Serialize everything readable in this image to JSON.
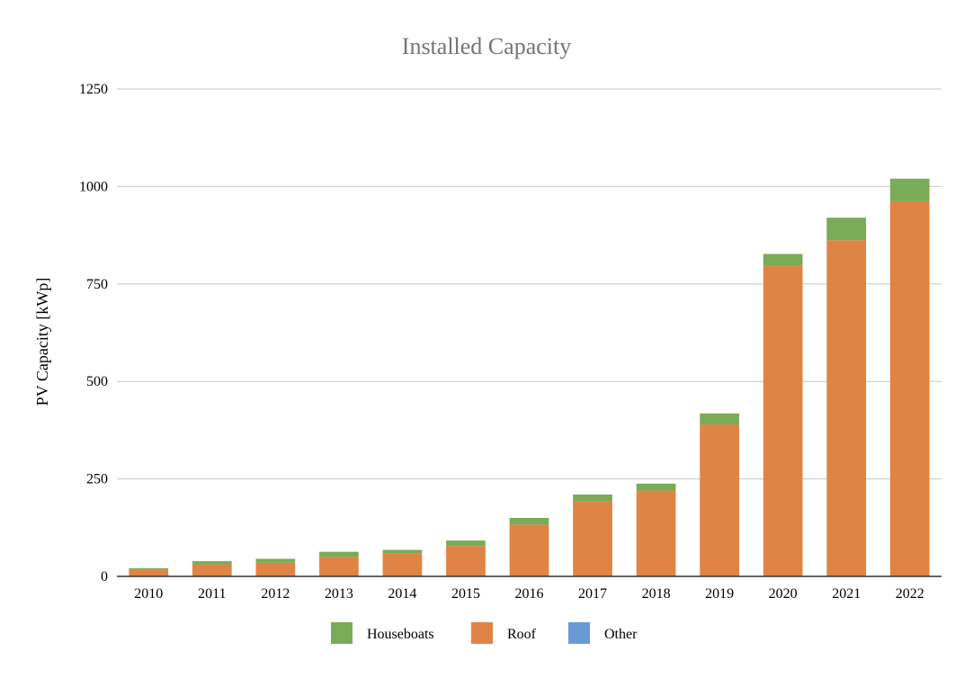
{
  "chart_data": {
    "type": "bar",
    "stacked": true,
    "title": "Installed Capacity",
    "xlabel": "",
    "ylabel": "PV Capacity [kWp]",
    "ylim": [
      0,
      1250
    ],
    "yticks": [
      0,
      250,
      500,
      750,
      1000,
      1250
    ],
    "grid": true,
    "legend_position": "bottom",
    "categories": [
      "2010",
      "2011",
      "2012",
      "2013",
      "2014",
      "2015",
      "2016",
      "2017",
      "2018",
      "2019",
      "2020",
      "2021",
      "2022"
    ],
    "series": [
      {
        "name": "Houseboats",
        "color": "#7aab57",
        "values": [
          4,
          8,
          10,
          13,
          10,
          14,
          17,
          18,
          18,
          28,
          30,
          58,
          58
        ]
      },
      {
        "name": "Roof",
        "color": "#e08445",
        "values": [
          17,
          31,
          35,
          50,
          58,
          78,
          133,
          192,
          220,
          390,
          797,
          862,
          962
        ]
      },
      {
        "name": "Other",
        "color": "#6a9ad5",
        "values": [
          0,
          0,
          0,
          0,
          0,
          0,
          0,
          0,
          0,
          0,
          0,
          0,
          0
        ]
      }
    ],
    "stack_order_bottom_to_top": [
      "Other",
      "Roof",
      "Houseboats"
    ]
  }
}
